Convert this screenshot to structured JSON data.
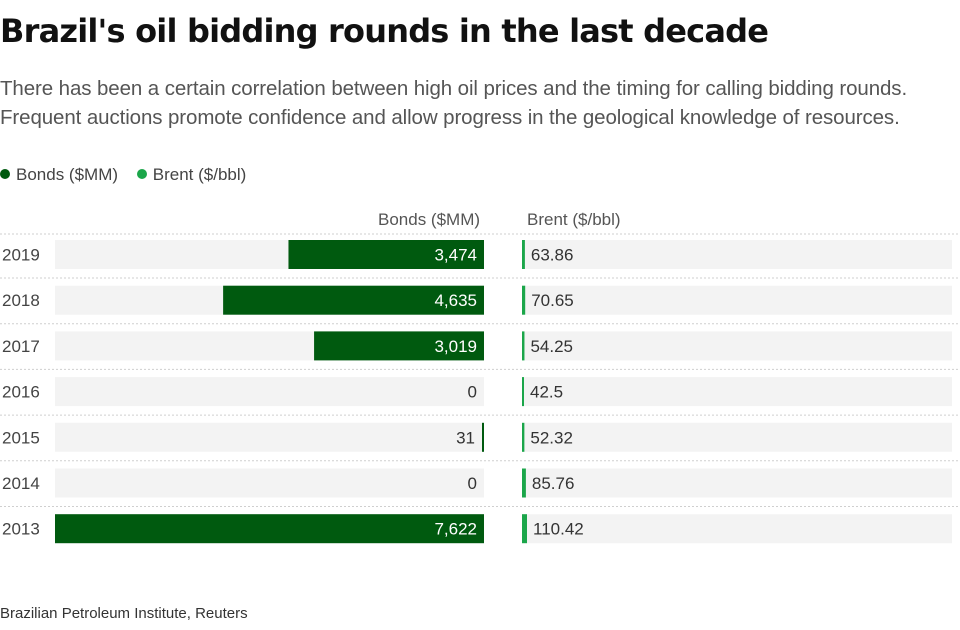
{
  "title": "Brazil's oil bidding rounds in the last decade",
  "subtitle": "There has been a certain correlation between high oil prices and the timing for calling bidding rounds. Frequent auctions promote confidence and allow progress in the geological knowledge of resources.",
  "source": "Brazilian Petroleum Institute, Reuters",
  "colors": {
    "bonds": "#005a0f",
    "brent": "#1ba64a",
    "track": "#f3f3f3",
    "label_dark": "#333333",
    "label_light": "#ffffff"
  },
  "legend": [
    {
      "label": "Bonds ($MM)",
      "color": "#005a0f"
    },
    {
      "label": "Brent ($/bbl)",
      "color": "#1ba64a"
    }
  ],
  "chart_data": {
    "type": "bar",
    "orientation": "horizontal",
    "categories": [
      "2019",
      "2018",
      "2017",
      "2016",
      "2015",
      "2014",
      "2013"
    ],
    "series": [
      {
        "name": "Bonds ($MM)",
        "values": [
          3474,
          4635,
          3019,
          0,
          31,
          0,
          7622
        ],
        "labels": [
          "3,474",
          "4,635",
          "3,019",
          "0",
          "31",
          "0",
          "7,622"
        ]
      },
      {
        "name": "Brent ($/bbl)",
        "values": [
          63.86,
          70.65,
          54.25,
          42.5,
          52.32,
          85.76,
          110.42
        ],
        "labels": [
          "63.86",
          "70.65",
          "54.25",
          "42.5",
          "52.32",
          "85.76",
          "110.42"
        ]
      }
    ],
    "legend_position": "top-left",
    "grid": false
  }
}
